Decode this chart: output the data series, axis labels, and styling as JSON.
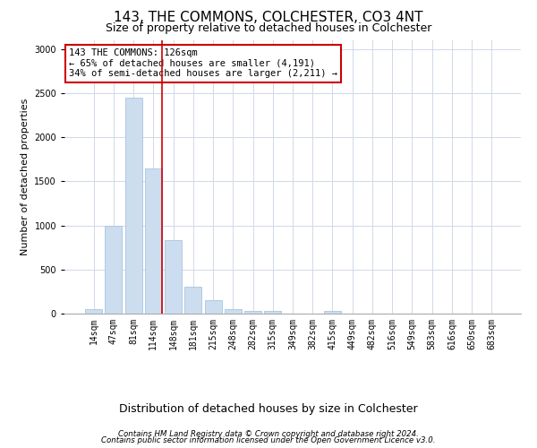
{
  "title": "143, THE COMMONS, COLCHESTER, CO3 4NT",
  "subtitle": "Size of property relative to detached houses in Colchester",
  "xlabel": "Distribution of detached houses by size in Colchester",
  "ylabel": "Number of detached properties",
  "bar_values_full": [
    55,
    1000,
    2450,
    1650,
    835,
    300,
    150,
    55,
    35,
    30,
    0,
    0,
    30,
    0,
    0,
    0,
    0,
    0,
    0,
    0,
    0
  ],
  "categories": [
    "14sqm",
    "47sqm",
    "81sqm",
    "114sqm",
    "148sqm",
    "181sqm",
    "215sqm",
    "248sqm",
    "282sqm",
    "315sqm",
    "349sqm",
    "382sqm",
    "415sqm",
    "449sqm",
    "482sqm",
    "516sqm",
    "549sqm",
    "583sqm",
    "616sqm",
    "650sqm",
    "683sqm"
  ],
  "bar_color": "#ccddf0",
  "bar_edge_color": "#aac4e0",
  "vline_x_idx": 3,
  "vline_color": "#cc0000",
  "annotation_text": "143 THE COMMONS: 126sqm\n← 65% of detached houses are smaller (4,191)\n34% of semi-detached houses are larger (2,211) →",
  "annotation_box_color": "#ffffff",
  "annotation_box_edge": "#cc0000",
  "ylim": [
    0,
    3100
  ],
  "yticks": [
    0,
    500,
    1000,
    1500,
    2000,
    2500,
    3000
  ],
  "footer_line1": "Contains HM Land Registry data © Crown copyright and database right 2024.",
  "footer_line2": "Contains public sector information licensed under the Open Government Licence v3.0.",
  "bg_color": "#ffffff",
  "grid_color": "#d0d8e8",
  "title_fontsize": 11,
  "subtitle_fontsize": 9,
  "ylabel_fontsize": 8,
  "xlabel_fontsize": 9,
  "tick_fontsize": 7,
  "annotation_fontsize": 7.5
}
